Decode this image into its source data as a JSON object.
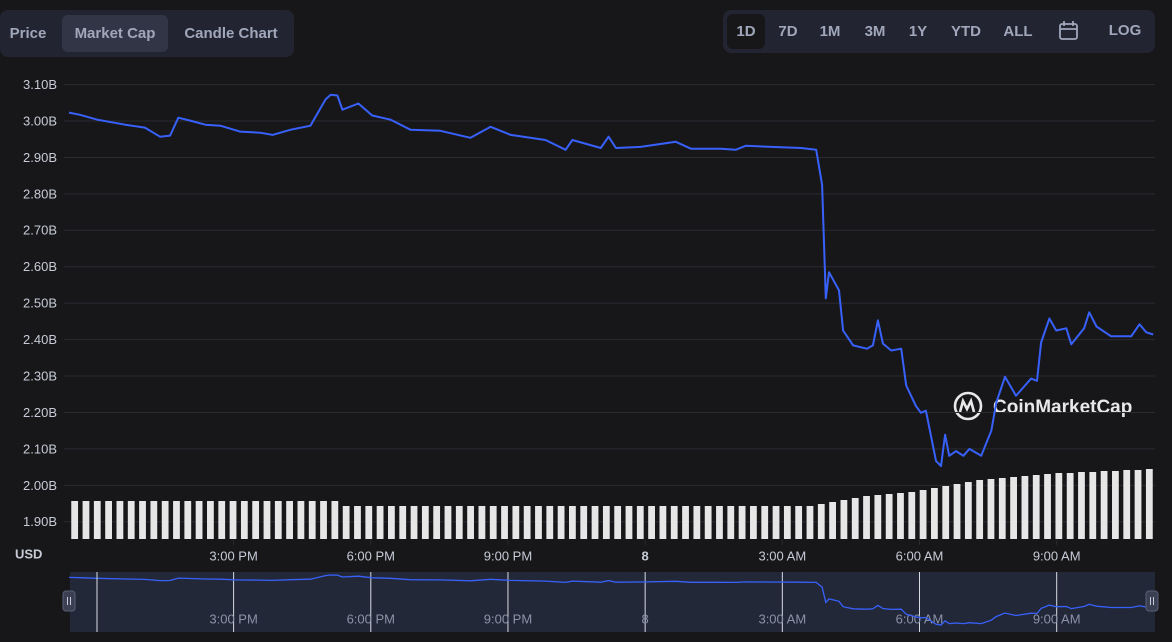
{
  "ui": {
    "tabs": [
      "Price",
      "Market Cap",
      "Candle Chart"
    ],
    "active_tab": "Market Cap",
    "ranges": [
      "1D",
      "7D",
      "1M",
      "3M",
      "1Y",
      "YTD",
      "ALL"
    ],
    "active_range": "1D",
    "log_button": "LOG"
  },
  "chart_data": {
    "type": "line",
    "y_label": "USD",
    "watermark": "CoinMarketCap",
    "x": [
      11.4,
      11.64,
      12.01,
      12.63,
      13.06,
      13.39,
      13.61,
      13.79,
      14.05,
      14.38,
      14.71,
      15.14,
      15.58,
      15.85,
      16.24,
      16.68,
      17.01,
      17.12,
      17.27,
      17.38,
      17.73,
      18.03,
      18.43,
      18.87,
      19.52,
      20.18,
      20.62,
      21.06,
      21.82,
      22.26,
      22.41,
      23.03,
      23.2,
      23.36,
      23.9,
      24.67,
      25.0,
      25.66,
      25.98,
      26.2,
      27.41,
      27.74,
      27.87,
      27.95,
      28.02,
      28.24,
      28.33,
      28.55,
      28.85,
      28.98,
      29.09,
      29.2,
      29.38,
      29.6,
      29.71,
      29.92,
      30.03,
      30.14,
      30.36,
      30.47,
      30.56,
      30.65,
      30.8,
      30.96,
      31.09,
      31.35,
      31.57,
      31.68,
      31.87,
      32.11,
      32.44,
      32.57,
      32.66,
      32.84,
      32.99,
      33.21,
      33.32,
      33.6,
      33.71,
      33.87,
      34.19,
      34.63,
      34.81,
      34.96,
      35.11
    ],
    "series": [
      {
        "name": "Market Cap",
        "color": "#3861fb",
        "values": [
          3.023,
          3.017,
          3.004,
          2.99,
          2.982,
          2.957,
          2.96,
          3.009,
          3.001,
          2.99,
          2.987,
          2.971,
          2.968,
          2.962,
          2.976,
          2.987,
          3.059,
          3.072,
          3.07,
          3.031,
          3.048,
          3.015,
          3.004,
          2.976,
          2.973,
          2.954,
          2.984,
          2.962,
          2.948,
          2.921,
          2.948,
          2.926,
          2.957,
          2.926,
          2.929,
          2.943,
          2.924,
          2.924,
          2.921,
          2.932,
          2.926,
          2.921,
          2.825,
          2.513,
          2.585,
          2.535,
          2.425,
          2.384,
          2.375,
          2.384,
          2.453,
          2.389,
          2.37,
          2.375,
          2.274,
          2.218,
          2.199,
          2.205,
          2.067,
          2.053,
          2.139,
          2.081,
          2.094,
          2.081,
          2.1,
          2.081,
          2.15,
          2.227,
          2.298,
          2.246,
          2.293,
          2.287,
          2.392,
          2.458,
          2.425,
          2.431,
          2.387,
          2.431,
          2.475,
          2.436,
          2.409,
          2.409,
          2.442,
          2.42,
          2.414
        ]
      }
    ],
    "volume": {
      "color": "#e6e6e6",
      "values": [
        38,
        38,
        38,
        38,
        38,
        38,
        38,
        38,
        38,
        38,
        38,
        38,
        38,
        38,
        38,
        38,
        38,
        38,
        38,
        38,
        38,
        38,
        38,
        38,
        33,
        33,
        33,
        33,
        33,
        33,
        33,
        33,
        33,
        33,
        33,
        33,
        33,
        33,
        33,
        33,
        33,
        33,
        33,
        33,
        33,
        33,
        33,
        33,
        33,
        33,
        33,
        33,
        33,
        33,
        33,
        33,
        33,
        33,
        33,
        33,
        33,
        33,
        33,
        33,
        33,
        33,
        35,
        37,
        39,
        41,
        43,
        44,
        45,
        46,
        47,
        49,
        51,
        53,
        55,
        57,
        59,
        60,
        61,
        62,
        63,
        64,
        65,
        66,
        66,
        67,
        67,
        68,
        68,
        69,
        69,
        70
      ]
    },
    "xlim": [
      11.4,
      35.15
    ],
    "xticks": [
      {
        "value": 15,
        "label": "3:00 PM"
      },
      {
        "value": 18,
        "label": "6:00 PM"
      },
      {
        "value": 21,
        "label": "9:00 PM"
      },
      {
        "value": 24,
        "label": "8"
      },
      {
        "value": 27,
        "label": "3:00 AM"
      },
      {
        "value": 30,
        "label": "6:00 AM"
      },
      {
        "value": 33,
        "label": "9:00 AM"
      }
    ],
    "ylim": [
      1.85,
      3.14
    ],
    "yticks": [
      {
        "value": 1.9,
        "label": "1.90B"
      },
      {
        "value": 2.0,
        "label": "2.00B"
      },
      {
        "value": 2.1,
        "label": "2.10B"
      },
      {
        "value": 2.2,
        "label": "2.20B"
      },
      {
        "value": 2.3,
        "label": "2.30B"
      },
      {
        "value": 2.4,
        "label": "2.40B"
      },
      {
        "value": 2.5,
        "label": "2.50B"
      },
      {
        "value": 2.6,
        "label": "2.60B"
      },
      {
        "value": 2.7,
        "label": "2.70B"
      },
      {
        "value": 2.8,
        "label": "2.80B"
      },
      {
        "value": 2.9,
        "label": "2.90B"
      },
      {
        "value": 3.0,
        "label": "3.00B"
      },
      {
        "value": 3.1,
        "label": "3.10B"
      }
    ],
    "grid": true
  }
}
